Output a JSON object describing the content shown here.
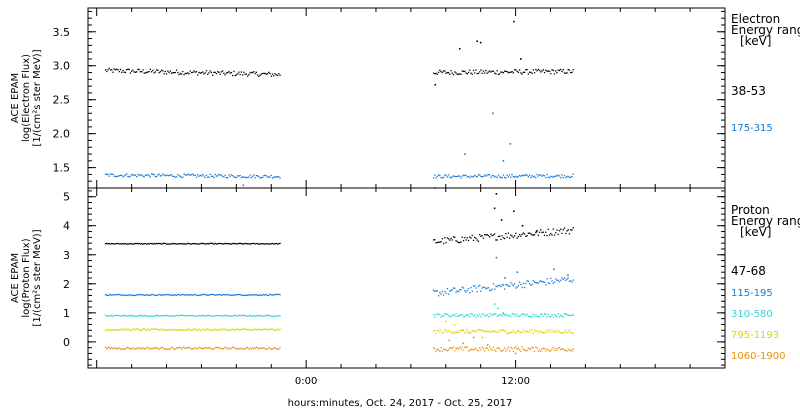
{
  "chart_data": [
    {
      "type": "scatter",
      "panel": "electron",
      "ylabel_lines": [
        "ACE EPAM",
        "log(Electron Flux)",
        "[1/(cm²s ster MeV)]"
      ],
      "ylim": [
        1.2,
        3.85
      ],
      "yticks": [
        1.5,
        2.0,
        2.5,
        3.0,
        3.5
      ],
      "ytick_labels": [
        "1.5",
        "2.0",
        "2.5",
        "3.0",
        "3.5"
      ],
      "legend_title": [
        "Electron",
        "Energy range",
        "[keV]"
      ],
      "series": [
        {
          "name": "38-53",
          "color": "#000000",
          "segments": [
            {
              "x_start": -11.5,
              "x_end": -1.5,
              "base": 2.93,
              "slope": -0.006,
              "noise": 0.035
            },
            {
              "x_start": 7.3,
              "x_end": 15.3,
              "base": 2.9,
              "slope": 0.002,
              "noise": 0.035
            }
          ],
          "extra_points": [
            [
              7.4,
              2.72
            ],
            [
              8.8,
              3.25
            ],
            [
              9.8,
              3.36
            ],
            [
              10.0,
              3.34
            ],
            [
              11.9,
              3.65
            ],
            [
              12.3,
              3.1
            ]
          ]
        },
        {
          "name": "175-315",
          "color": "#1a7ad4",
          "segments": [
            {
              "x_start": -11.5,
              "x_end": -1.5,
              "base": 1.39,
              "slope": -0.002,
              "noise": 0.025
            },
            {
              "x_start": 7.3,
              "x_end": 15.3,
              "base": 1.37,
              "slope": 0.001,
              "noise": 0.025
            }
          ],
          "extra_points": [
            [
              7.4,
              1.2
            ],
            [
              9.1,
              1.7
            ],
            [
              10.7,
              2.3
            ],
            [
              11.3,
              1.6
            ],
            [
              11.7,
              1.85
            ],
            [
              -3.6,
              1.24
            ]
          ]
        }
      ]
    },
    {
      "type": "scatter",
      "panel": "proton",
      "ylabel_lines": [
        "ACE EPAM",
        "log(Proton Flux)",
        "[1/(cm²s ster MeV)]"
      ],
      "ylim": [
        -0.9,
        5.3
      ],
      "yticks": [
        0,
        1,
        2,
        3,
        4,
        5
      ],
      "ytick_labels": [
        "0",
        "1",
        "2",
        "3",
        "4",
        "5"
      ],
      "legend_title": [
        "Proton",
        "Energy range",
        "[keV]"
      ],
      "xlabel": "hours:minutes, Oct. 24, 2017 - Oct. 25, 2017",
      "xlim": [
        -12.5,
        24
      ],
      "xticks": [
        0,
        12
      ],
      "xtick_labels": [
        "0:00",
        "12:00"
      ],
      "series": [
        {
          "name": "47-68",
          "color": "#000000",
          "segments": [
            {
              "x_start": -11.5,
              "x_end": -1.5,
              "base": 3.38,
              "slope": 0.0,
              "noise": 0.015
            },
            {
              "x_start": 7.3,
              "x_end": 15.3,
              "base": 3.45,
              "slope": 0.05,
              "noise": 0.12
            }
          ],
          "extra_points": [
            [
              10.8,
              4.6
            ],
            [
              10.9,
              5.1
            ],
            [
              11.2,
              4.2
            ],
            [
              11.9,
              4.5
            ],
            [
              12.4,
              4.0
            ],
            [
              13.2,
              3.8
            ]
          ]
        },
        {
          "name": "115-195",
          "color": "#1a7ad4",
          "segments": [
            {
              "x_start": -11.5,
              "x_end": -1.5,
              "base": 1.62,
              "slope": 0.0,
              "noise": 0.02
            },
            {
              "x_start": 7.3,
              "x_end": 15.3,
              "base": 1.68,
              "slope": 0.06,
              "noise": 0.12
            }
          ],
          "extra_points": [
            [
              10.9,
              2.9
            ],
            [
              11.4,
              2.2
            ],
            [
              12.1,
              2.4
            ],
            [
              14.2,
              2.5
            ],
            [
              15.0,
              2.3
            ]
          ]
        },
        {
          "name": "310-580",
          "color": "#33d6d0",
          "segments": [
            {
              "x_start": -11.5,
              "x_end": -1.5,
              "base": 0.9,
              "slope": 0.0,
              "noise": 0.02
            },
            {
              "x_start": 7.3,
              "x_end": 15.3,
              "base": 0.92,
              "slope": 0.0,
              "noise": 0.06
            }
          ],
          "extra_points": [
            [
              10.8,
              1.3
            ],
            [
              11.0,
              1.15
            ],
            [
              11.3,
              1.0
            ]
          ]
        },
        {
          "name": "795-1193",
          "color": "#d8d800",
          "segments": [
            {
              "x_start": -11.5,
              "x_end": -1.5,
              "base": 0.42,
              "slope": 0.0,
              "noise": 0.03
            },
            {
              "x_start": 7.3,
              "x_end": 15.3,
              "base": 0.36,
              "slope": 0.0,
              "noise": 0.07
            }
          ],
          "extra_points": [
            [
              8.0,
              0.7
            ],
            [
              9.3,
              0.3
            ],
            [
              10.1,
              0.15
            ],
            [
              8.5,
              0.58
            ]
          ]
        },
        {
          "name": "1060-1900",
          "color": "#e8900c",
          "segments": [
            {
              "x_start": -11.5,
              "x_end": -1.5,
              "base": -0.22,
              "slope": 0.0,
              "noise": 0.035
            },
            {
              "x_start": 7.3,
              "x_end": 15.3,
              "base": -0.25,
              "slope": 0.0,
              "noise": 0.08
            }
          ],
          "extra_points": [
            [
              8.2,
              0.05
            ],
            [
              9.0,
              -0.05
            ],
            [
              9.6,
              0.15
            ],
            [
              10.4,
              -0.1
            ],
            [
              12.0,
              -0.4
            ]
          ]
        }
      ]
    }
  ]
}
